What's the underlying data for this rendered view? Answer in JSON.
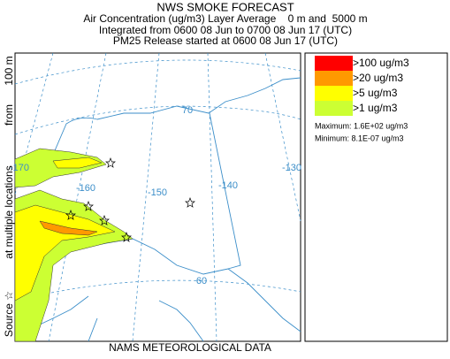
{
  "header": {
    "title": "NWS SMOKE FORECAST",
    "lines": [
      "Air Concentration (ug/m3) Layer Average    0 m and  5000 m",
      "Integrated from 0600 08 Jun to 0700 08 Jun 17 (UTC)",
      "PM25 Release started at 0600 08 Jun 17 (UTC)"
    ]
  },
  "side_label": [
    "Source ☆",
    "at multiple locations",
    "from",
    "100 m"
  ],
  "footer": "NAMS METEOROLOGICAL DATA",
  "map_labels": [
    "70",
    "-170",
    "-160",
    "-150",
    "-140",
    "-130",
    "60"
  ],
  "legend": {
    "items": [
      {
        "label": ">100 ug/m3",
        "color": "#ff0000"
      },
      {
        "label": ">20 ug/m3",
        "color": "#ff9900"
      },
      {
        "label": ">5 ug/m3",
        "color": "#ffff00"
      },
      {
        "label": ">1 ug/m3",
        "color": "#ccff33"
      }
    ],
    "maximum": "Maximum: 1.6E+02 ug/m3",
    "minimum": "Minimum: 8.1E-07 ug/m3"
  }
}
